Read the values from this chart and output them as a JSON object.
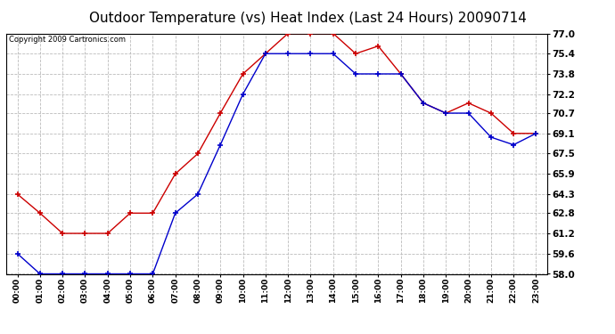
{
  "title": "Outdoor Temperature (vs) Heat Index (Last 24 Hours) 20090714",
  "copyright": "Copyright 2009 Cartronics.com",
  "x_labels": [
    "00:00",
    "01:00",
    "02:00",
    "03:00",
    "04:00",
    "05:00",
    "06:00",
    "07:00",
    "08:00",
    "09:00",
    "10:00",
    "11:00",
    "12:00",
    "13:00",
    "14:00",
    "15:00",
    "16:00",
    "17:00",
    "18:00",
    "19:00",
    "20:00",
    "21:00",
    "22:00",
    "23:00"
  ],
  "heat_index": [
    64.3,
    62.8,
    61.2,
    61.2,
    61.2,
    62.8,
    62.8,
    65.9,
    67.5,
    70.7,
    73.8,
    75.4,
    77.0,
    77.0,
    77.0,
    75.4,
    76.0,
    73.8,
    71.5,
    70.7,
    71.5,
    70.7,
    69.1,
    69.1
  ],
  "temp": [
    59.6,
    58.0,
    58.0,
    58.0,
    58.0,
    58.0,
    58.0,
    62.8,
    64.3,
    68.2,
    72.2,
    75.4,
    75.4,
    75.4,
    75.4,
    73.8,
    73.8,
    73.8,
    71.5,
    70.7,
    70.7,
    68.8,
    68.2,
    69.1
  ],
  "heat_index_color": "#cc0000",
  "temp_color": "#0000cc",
  "ylim_min": 58.0,
  "ylim_max": 77.0,
  "yticks": [
    58.0,
    59.6,
    61.2,
    62.8,
    64.3,
    65.9,
    67.5,
    69.1,
    70.7,
    72.2,
    73.8,
    75.4,
    77.0
  ],
  "bg_color": "#ffffff",
  "grid_color": "#bbbbbb",
  "title_fontsize": 11,
  "copyright_fontsize": 6,
  "tick_fontsize": 7.5,
  "xtick_fontsize": 6.5
}
